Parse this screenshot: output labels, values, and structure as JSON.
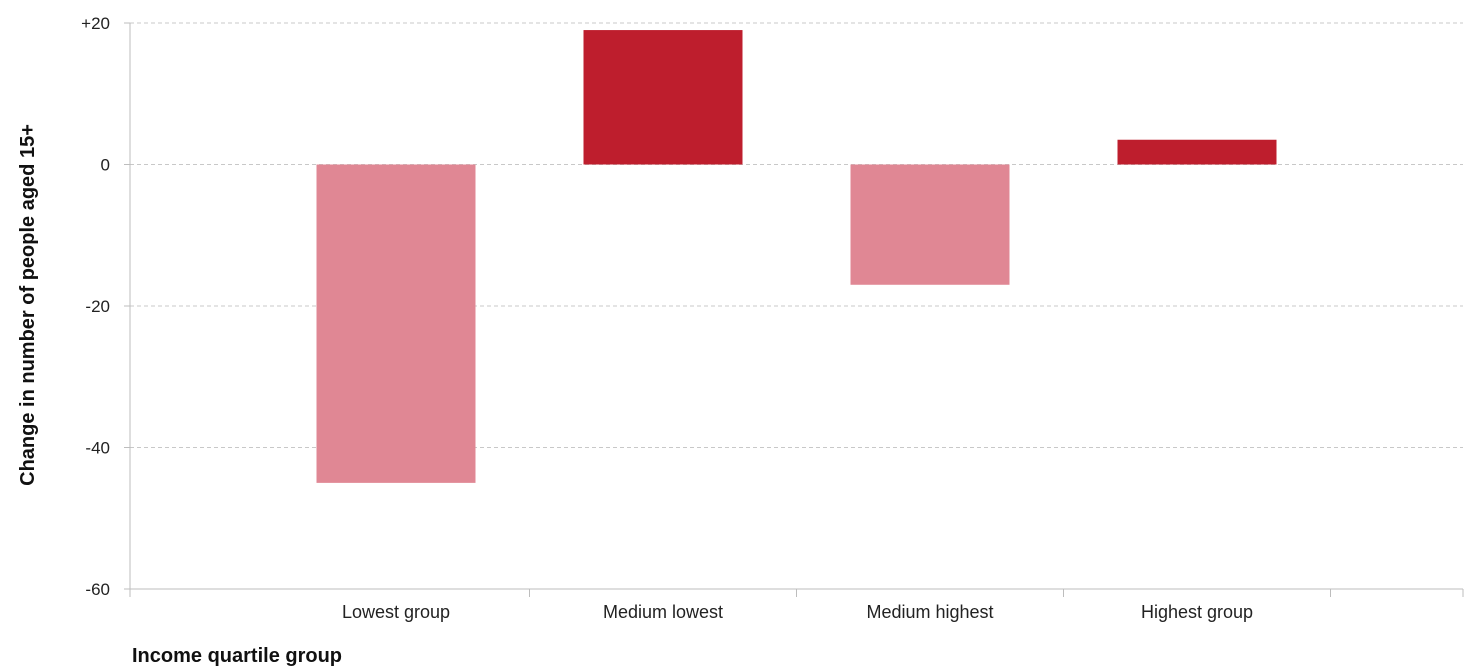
{
  "chart_data": {
    "type": "bar",
    "categories": [
      "Lowest group",
      "Medium lowest",
      "Medium highest",
      "Highest group"
    ],
    "values": [
      -45,
      19,
      -17,
      3.5
    ],
    "ylabel": "Change in number of people aged 15+",
    "xlabel": "Income quartile group",
    "ylim": [
      -60,
      20
    ],
    "yticks": [
      20,
      0,
      -20,
      -40,
      -60
    ],
    "ytick_labels": [
      "+20",
      "0",
      "-20",
      "-40",
      "-60"
    ],
    "grid": true,
    "colors": {
      "positive": "#be1e2d",
      "negative": "#e08794"
    }
  }
}
